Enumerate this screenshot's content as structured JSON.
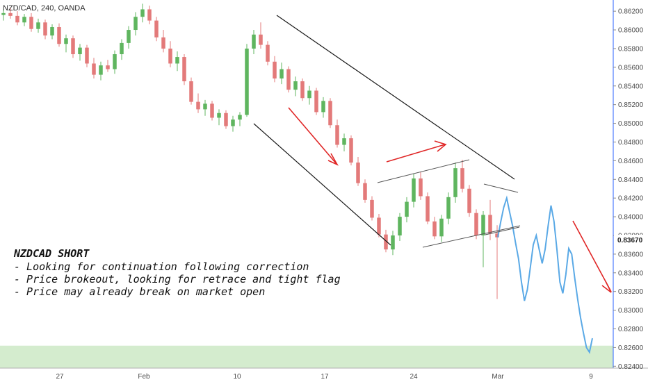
{
  "header": {
    "symbol": "NZD/CAD, 240, OANDA"
  },
  "chart_data": {
    "type": "candlestick",
    "symbol": "NZD/CAD",
    "interval": "240",
    "source": "OANDA",
    "x_tick_labels": [
      "27",
      "Feb",
      "10",
      "17",
      "24",
      "Mar",
      "9"
    ],
    "y_tick_labels": [
      "0.86200",
      "0.86000",
      "0.85800",
      "0.85600",
      "0.85400",
      "0.85200",
      "0.85000",
      "0.84800",
      "0.84600",
      "0.84400",
      "0.84200",
      "0.84000",
      "0.83800",
      "0.83600",
      "0.83400",
      "0.83200",
      "0.83000",
      "0.82800",
      "0.82600",
      "0.82400"
    ],
    "ylim": [
      0.8238,
      0.8632
    ],
    "current_price": "0.83670",
    "grid": false,
    "candles": [
      [
        "26",
        0.8616,
        0.8622,
        0.861,
        0.8618
      ],
      [
        "26",
        0.8618,
        0.8624,
        0.8612,
        0.8615
      ],
      [
        "27",
        0.8615,
        0.862,
        0.8605,
        0.8608
      ],
      [
        "27",
        0.8608,
        0.8617,
        0.8604,
        0.8614
      ],
      [
        "27",
        0.8614,
        0.8618,
        0.8598,
        0.8601
      ],
      [
        "28",
        0.8601,
        0.8612,
        0.8597,
        0.8608
      ],
      [
        "28",
        0.8608,
        0.8611,
        0.859,
        0.8594
      ],
      [
        "28",
        0.8594,
        0.8606,
        0.859,
        0.8603
      ],
      [
        "29",
        0.8603,
        0.8607,
        0.8582,
        0.8585
      ],
      [
        "29",
        0.8585,
        0.8595,
        0.8576,
        0.8591
      ],
      [
        "30",
        0.8591,
        0.8594,
        0.857,
        0.8574
      ],
      [
        "30",
        0.8574,
        0.8585,
        0.8567,
        0.8581
      ],
      [
        "30",
        0.8581,
        0.8584,
        0.856,
        0.8564
      ],
      [
        "31",
        0.8564,
        0.857,
        0.8548,
        0.8552
      ],
      [
        "31",
        0.8552,
        0.8566,
        0.8546,
        0.8562
      ],
      [
        "31",
        0.8562,
        0.8568,
        0.8555,
        0.8558
      ],
      [
        "Feb",
        0.8558,
        0.8578,
        0.8553,
        0.8574
      ],
      [
        "Feb",
        0.8574,
        0.859,
        0.8568,
        0.8586
      ],
      [
        "Feb",
        0.8586,
        0.8604,
        0.858,
        0.86
      ],
      [
        "Feb",
        0.86,
        0.8619,
        0.8594,
        0.8614
      ],
      [
        "Feb",
        0.8614,
        0.8628,
        0.8608,
        0.8622
      ],
      [
        "Feb",
        0.8622,
        0.8626,
        0.8606,
        0.861
      ],
      [
        "Feb",
        0.861,
        0.8614,
        0.8588,
        0.8592
      ],
      [
        "Feb",
        0.8592,
        0.86,
        0.8576,
        0.858
      ],
      [
        "Feb",
        0.858,
        0.8588,
        0.856,
        0.8564
      ],
      [
        "Feb",
        0.8564,
        0.8577,
        0.8556,
        0.8571
      ],
      [
        "Feb",
        0.8571,
        0.8574,
        0.8541,
        0.8545
      ],
      [
        "Feb",
        0.8545,
        0.8549,
        0.852,
        0.8523
      ],
      [
        "10",
        0.8523,
        0.8532,
        0.8511,
        0.8515
      ],
      [
        "10",
        0.8515,
        0.8525,
        0.8508,
        0.8521
      ],
      [
        "10",
        0.8521,
        0.8524,
        0.8503,
        0.8506
      ],
      [
        "11",
        0.8506,
        0.8515,
        0.8498,
        0.8511
      ],
      [
        "11",
        0.8511,
        0.8514,
        0.8494,
        0.8497
      ],
      [
        "11",
        0.8497,
        0.8508,
        0.8491,
        0.8504
      ],
      [
        "12",
        0.8504,
        0.8512,
        0.8497,
        0.8509
      ],
      [
        "12",
        0.8509,
        0.8585,
        0.8507,
        0.858
      ],
      [
        "12",
        0.858,
        0.86,
        0.8574,
        0.8595
      ],
      [
        "13",
        0.8595,
        0.8608,
        0.858,
        0.8584
      ],
      [
        "13",
        0.8584,
        0.8588,
        0.8562,
        0.8566
      ],
      [
        "13",
        0.8566,
        0.8572,
        0.8544,
        0.8548
      ],
      [
        "14",
        0.8548,
        0.8565,
        0.8542,
        0.8558
      ],
      [
        "14",
        0.8558,
        0.8561,
        0.8533,
        0.8536
      ],
      [
        "14",
        0.8536,
        0.855,
        0.8529,
        0.8545
      ],
      [
        "17",
        0.8545,
        0.8548,
        0.8524,
        0.8527
      ],
      [
        "17",
        0.8527,
        0.854,
        0.852,
        0.8535
      ],
      [
        "17",
        0.8535,
        0.8538,
        0.8509,
        0.8512
      ],
      [
        "18",
        0.8512,
        0.8528,
        0.8506,
        0.8524
      ],
      [
        "18",
        0.8524,
        0.8527,
        0.8495,
        0.8498
      ],
      [
        "18",
        0.8498,
        0.8504,
        0.8474,
        0.8477
      ],
      [
        "19",
        0.8477,
        0.8489,
        0.847,
        0.8484
      ],
      [
        "19",
        0.8484,
        0.8487,
        0.8455,
        0.8458
      ],
      [
        "19",
        0.8458,
        0.8464,
        0.8433,
        0.8436
      ],
      [
        "20",
        0.8436,
        0.844,
        0.8415,
        0.8418
      ],
      [
        "20",
        0.8418,
        0.8422,
        0.8396,
        0.8399
      ],
      [
        "20",
        0.8399,
        0.8403,
        0.8378,
        0.8381
      ],
      [
        "21",
        0.8381,
        0.8386,
        0.8362,
        0.8365
      ],
      [
        "21",
        0.8365,
        0.8385,
        0.8359,
        0.838
      ],
      [
        "21",
        0.838,
        0.8404,
        0.8374,
        0.84
      ],
      [
        "24",
        0.84,
        0.8421,
        0.8394,
        0.8416
      ],
      [
        "24",
        0.8416,
        0.8446,
        0.841,
        0.8441
      ],
      [
        "24",
        0.8441,
        0.8448,
        0.8418,
        0.8422
      ],
      [
        "25",
        0.8422,
        0.8426,
        0.8392,
        0.8395
      ],
      [
        "25",
        0.8395,
        0.84,
        0.8376,
        0.8379
      ],
      [
        "25",
        0.8379,
        0.8402,
        0.8373,
        0.8398
      ],
      [
        "26",
        0.8398,
        0.8426,
        0.8392,
        0.8421
      ],
      [
        "26",
        0.8421,
        0.8458,
        0.8415,
        0.8452
      ],
      [
        "26",
        0.8452,
        0.8461,
        0.8426,
        0.843
      ],
      [
        "27",
        0.843,
        0.8434,
        0.84,
        0.8404
      ],
      [
        "27",
        0.8404,
        0.8408,
        0.8376,
        0.838
      ],
      [
        "27",
        0.838,
        0.8406,
        0.8346,
        0.8402
      ],
      [
        "28",
        0.8402,
        0.8418,
        0.8375,
        0.8382
      ],
      [
        "28",
        0.8382,
        0.8391,
        0.8312,
        0.8378
      ]
    ],
    "line_series": {
      "name": "",
      "values": [
        0.8378,
        0.8395,
        0.841,
        0.842,
        0.8405,
        0.839,
        0.8372,
        0.8355,
        0.833,
        0.831,
        0.8322,
        0.8346,
        0.837,
        0.838,
        0.8365,
        0.835,
        0.8365,
        0.839,
        0.8412,
        0.8395,
        0.8365,
        0.833,
        0.8318,
        0.8338,
        0.8366,
        0.836,
        0.8335,
        0.8312,
        0.8292,
        0.8275,
        0.826,
        0.8255,
        0.827
      ]
    },
    "support_zone": [
      0.8238,
      0.8262
    ],
    "annotation": {
      "title": "NZDCAD SHORT",
      "lines": [
        "- Looking for continuation following correction",
        "- Price brokeout, looking for retrace and tight flag",
        "- Price may already break on market open"
      ]
    },
    "colors": {
      "up": "#5fb55f",
      "down": "#e37a7a",
      "line": "#5aa9e6",
      "zone": "#cde9c6",
      "arrow": "#e02626",
      "trendline": "#1a1a1a",
      "flagline": "#555555",
      "axis_border": "#2962ff"
    }
  }
}
